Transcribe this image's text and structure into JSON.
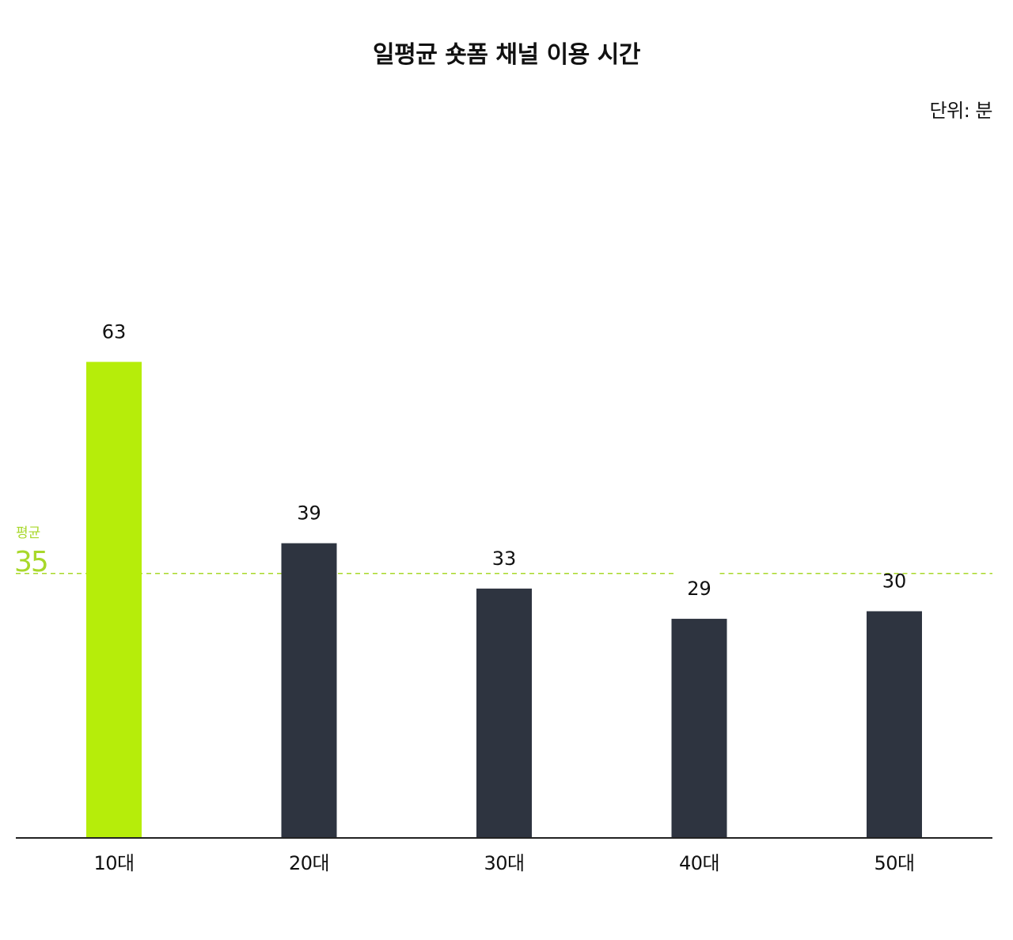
{
  "chart_data": {
    "type": "bar",
    "title": "일평균 숏폼 채널 이용 시간",
    "unit": "단위: 분",
    "categories": [
      "10대",
      "20대",
      "30대",
      "40대",
      "50대"
    ],
    "values": [
      63,
      39,
      33,
      29,
      30
    ],
    "value_labels": [
      "63",
      "39",
      "33",
      "29",
      "30"
    ],
    "highlight_index": 0,
    "ylim": [
      0,
      100
    ],
    "grid": false,
    "average": {
      "label": "평균",
      "value": 35,
      "value_label": "35"
    },
    "colors": {
      "highlight": "#b6ed0a",
      "bar": "#2e3440",
      "average": "#a8d82a",
      "axis": "#222222",
      "text": "#111111"
    }
  }
}
